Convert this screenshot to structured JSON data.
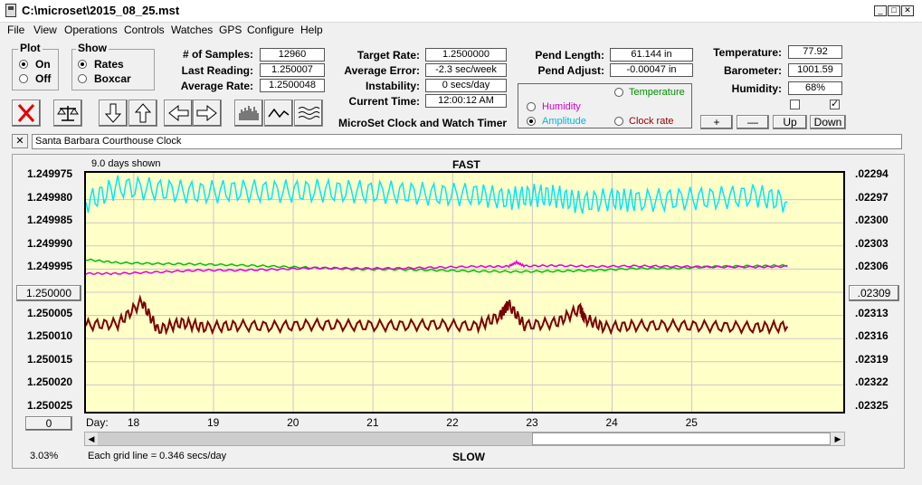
{
  "window": {
    "title": "C:\\microset\\2015_08_25.mst",
    "minimize": "_",
    "maximize": "□",
    "close": "✕"
  },
  "menu": [
    "File",
    "View",
    "Operations",
    "Controls",
    "Watches",
    "GPS",
    "Configure",
    "Help"
  ],
  "plot_group": {
    "title": "Plot",
    "on": "On",
    "off": "Off",
    "selected": "On"
  },
  "show_group": {
    "title": "Show",
    "rates": "Rates",
    "boxcar": "Boxcar",
    "selected": "Rates"
  },
  "stats": {
    "samples_label": "# of Samples:",
    "samples": "12960",
    "last_label": "Last Reading:",
    "last": "1.250007",
    "avg_label": "Average Rate:",
    "avg": "1.2500048"
  },
  "targets": {
    "target_label": "Target Rate:",
    "target": "1.2500000",
    "error_label": "Average Error:",
    "error": "-2.3 sec/week",
    "instab_label": "Instability:",
    "instab": "0 secs/day",
    "time_label": "Current Time:",
    "time": "12:00:12 AM"
  },
  "app_name": "MicroSet Clock and Watch Timer",
  "pend": {
    "length_label": "Pend Length:",
    "length": "61.144 in",
    "adjust_label": "Pend Adjust:",
    "adjust": "-0.00047 in"
  },
  "series_select": {
    "temperature": "Temperature",
    "humidity": "Humidity",
    "amplitude": "Amplitude",
    "clock_rate": "Clock rate",
    "selected": "Amplitude"
  },
  "env": {
    "temp_label": "Temperature:",
    "temp": "77.92",
    "baro_label": "Barometer:",
    "baro": "1001.59",
    "hum_label": "Humidity:",
    "hum": "68%",
    "check1": false,
    "check2": true
  },
  "scale_buttons": {
    "plus": "+",
    "minus": "—",
    "up": "Up",
    "down": "Down"
  },
  "clock_name": "Santa Barbara Courthouse Clock",
  "close_x": "✕",
  "chart_data": {
    "type": "line",
    "top_label": "FAST",
    "bottom_label": "SLOW",
    "days_shown": "9.0 days shown",
    "grid_note": "Each grid line = 0.346 secs/day",
    "left_ticks": [
      "1.249975",
      "1.249980",
      "1.249985",
      "1.249990",
      "1.249995",
      "1.250000",
      "1.250005",
      "1.250010",
      "1.250015",
      "1.250020",
      "1.250025"
    ],
    "right_ticks": [
      ".02294",
      ".02297",
      ".02300",
      ".02303",
      ".02306",
      ".02309",
      ".02313",
      ".02316",
      ".02319",
      ".02322",
      ".02325"
    ],
    "x_label": "Day:",
    "x_ticks": [
      "18",
      "19",
      "20",
      "21",
      "22",
      "23",
      "24",
      "25"
    ],
    "x_range": [
      17.1,
      26.6
    ],
    "left_range": [
      1.249974,
      1.250025
    ],
    "left_button": "1.250000",
    "right_button": ".02309",
    "bottom_button": "0",
    "percent": "3.03%",
    "series": [
      {
        "color": "#00e5ff",
        "x": [
          17.1,
          17.5,
          18.0,
          18.5,
          19.0,
          19.5,
          20.0,
          20.5,
          21.0,
          21.5,
          22.0,
          22.4,
          22.7,
          23.0,
          23.3,
          23.7,
          24.0,
          24.5,
          25.0,
          25.5,
          25.9
        ],
        "y": [
          1.2499803,
          1.249977,
          1.2499776,
          1.2499782,
          1.2499778,
          1.249978,
          1.2499778,
          1.249978,
          1.2499782,
          1.2499786,
          1.2499786,
          1.2499796,
          1.2499788,
          1.249979,
          1.2499804,
          1.2499796,
          1.24998,
          1.2499796,
          1.2499794,
          1.2499788,
          1.2499802
        ]
      },
      {
        "color": "#00c000",
        "x": [
          17.1,
          17.5,
          18.0,
          18.5,
          19.0,
          19.5,
          20.0,
          20.5,
          21.0,
          21.5,
          22.0,
          22.5,
          23.0,
          23.5,
          24.0,
          24.5,
          25.0,
          25.5,
          25.9
        ],
        "y": [
          1.2499925,
          1.2499932,
          1.2499934,
          1.2499935,
          1.2499937,
          1.249994,
          1.2499943,
          1.2499946,
          1.2499946,
          1.2499948,
          1.249995,
          1.2499951,
          1.249995,
          1.2499948,
          1.2499944,
          1.2499944,
          1.249994,
          1.2499939,
          1.2499938
        ]
      },
      {
        "color": "#e000e0",
        "x": [
          17.1,
          17.5,
          18.0,
          18.5,
          19.0,
          19.5,
          20.0,
          20.5,
          21.0,
          21.5,
          22.0,
          22.4,
          22.5,
          22.6,
          23.0,
          23.5,
          24.0,
          24.5,
          25.0,
          25.5,
          25.9
        ],
        "y": [
          1.2499955,
          1.2499955,
          1.2499952,
          1.2499948,
          1.2499948,
          1.2499946,
          1.2499943,
          1.2499944,
          1.2499944,
          1.2499942,
          1.249994,
          1.249994,
          1.2499931,
          1.2499939,
          1.2499938,
          1.249994,
          1.2499939,
          1.249994,
          1.2499941,
          1.2499941,
          1.249994
        ]
      },
      {
        "color": "#7a0000",
        "x": [
          17.1,
          17.5,
          17.8,
          18.0,
          18.3,
          18.6,
          19.0,
          19.5,
          20.0,
          20.5,
          21.0,
          21.5,
          22.0,
          22.3,
          22.4,
          22.6,
          23.0,
          23.3,
          23.35,
          23.6,
          24.0,
          24.5,
          25.0,
          25.5,
          25.9
        ],
        "y": [
          1.2500065,
          1.2500062,
          1.2500015,
          1.2500075,
          1.250006,
          1.250007,
          1.2500066,
          1.2500068,
          1.2500064,
          1.2500066,
          1.2500066,
          1.2500064,
          1.2500068,
          1.2500045,
          1.250002,
          1.2500066,
          1.250006,
          1.250003,
          1.250005,
          1.250007,
          1.2500066,
          1.2500066,
          1.2500068,
          1.250007,
          1.2500068
        ]
      }
    ]
  }
}
